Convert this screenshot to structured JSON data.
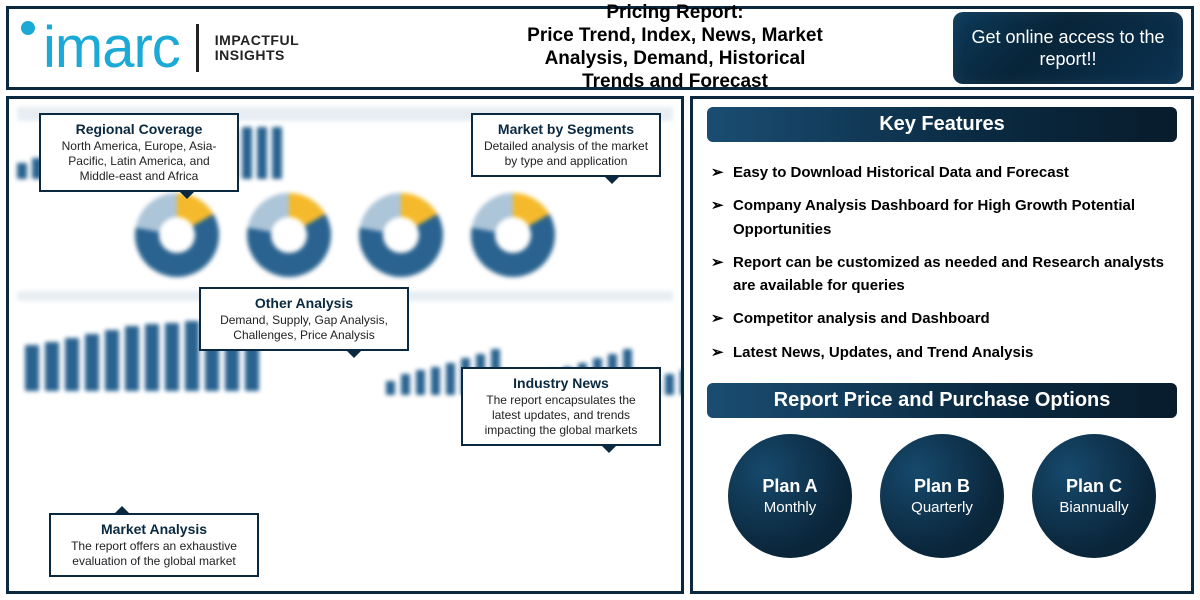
{
  "colors": {
    "border": "#0a2940",
    "accent_blue": "#1ba9d6",
    "dark_navy_gradient": [
      "#1a4d72",
      "#0a2940",
      "#081c2c"
    ],
    "chart_bar": "#1f5b8a",
    "donut_segments": [
      "#f5b720",
      "#1f5b8a",
      "#a8c2d6"
    ],
    "text": "#000000",
    "white": "#ffffff"
  },
  "header": {
    "logo_word": "imarc",
    "logo_tag_line1": "IMPACTFUL",
    "logo_tag_line2": "INSIGHTS",
    "title_line1": "Pricing Report:",
    "title_line2": "Price Trend, Index, News, Market",
    "title_line3": "Analysis, Demand, Historical",
    "title_line4": "Trends and Forecast",
    "cta_label": "Get online access to the report!!"
  },
  "callouts": [
    {
      "id": "regional",
      "title": "Regional Coverage",
      "body": "North America, Europe, Asia-Pacific, Latin America, and Middle-east and Africa"
    },
    {
      "id": "segments",
      "title": "Market by Segments",
      "body": "Detailed analysis of the market by type and application"
    },
    {
      "id": "other",
      "title": "Other Analysis",
      "body": "Demand, Supply, Gap Analysis, Challenges, Price Analysis"
    },
    {
      "id": "news",
      "title": "Industry News",
      "body": "The report encapsulates the latest updates, and trends impacting the global markets"
    },
    {
      "id": "market",
      "title": "Market Analysis",
      "body": "The report offers an exhaustive evaluation of the global market"
    }
  ],
  "dashboard": {
    "top_bar_heights_pct": [
      30,
      40,
      45,
      50,
      55,
      55,
      60,
      65,
      70,
      75,
      75,
      80,
      85,
      90,
      95,
      100,
      100,
      100
    ],
    "donut_count": 4,
    "donut_split_deg": [
      60,
      280,
      360
    ],
    "bottom_left_bars_pct": [
      60,
      65,
      70,
      75,
      80,
      85,
      88,
      90,
      92,
      95,
      98,
      100
    ],
    "mini_chart_count": 3,
    "mini_bars_pct": [
      30,
      45,
      55,
      60,
      70,
      80,
      90,
      100
    ]
  },
  "right": {
    "features_title": "Key Features",
    "features": [
      "Easy to Download Historical Data and Forecast",
      "Company Analysis Dashboard for High Growth Potential Opportunities",
      "Report can be customized as needed and Research analysts are available for queries",
      "Competitor analysis and Dashboard",
      "Latest News, Updates, and Trend Analysis"
    ],
    "purchase_title": "Report Price and Purchase Options",
    "plans": [
      {
        "name": "Plan A",
        "period": "Monthly"
      },
      {
        "name": "Plan B",
        "period": "Quarterly"
      },
      {
        "name": "Plan C",
        "period": "Biannually"
      }
    ]
  }
}
